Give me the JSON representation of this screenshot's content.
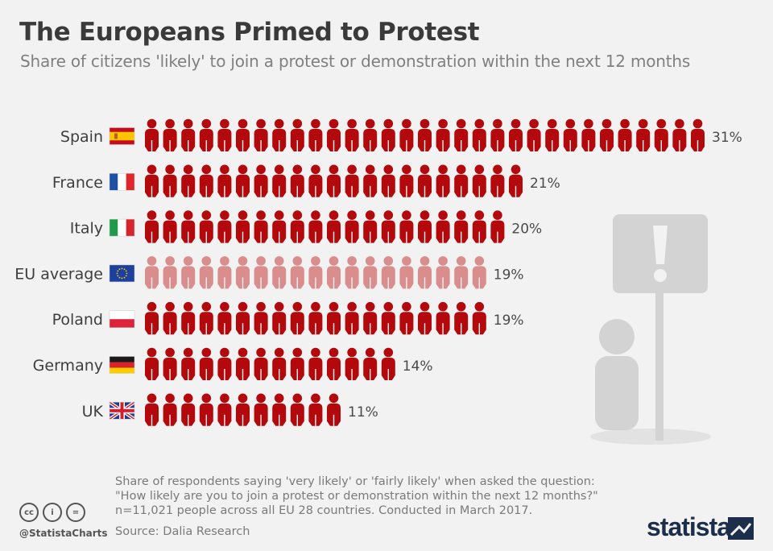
{
  "header": {
    "title": "The Europeans Primed to Protest",
    "subtitle": "Share of citizens 'likely' to join a protest or demonstration within the next 12 months"
  },
  "chart_data": {
    "type": "bar",
    "unit": "%",
    "categories": [
      "Spain",
      "France",
      "Italy",
      "EU average",
      "Poland",
      "Germany",
      "UK"
    ],
    "values": [
      31,
      21,
      20,
      19,
      19,
      14,
      11
    ],
    "value_labels": [
      "31%",
      "21%",
      "20%",
      "19%",
      "19%",
      "14%",
      "11%"
    ],
    "highlight_category": "EU average",
    "colors": {
      "bar": "#b3090c",
      "highlight": "#d98d8d"
    },
    "icons": [
      "spain-flag-icon",
      "france-flag-icon",
      "italy-flag-icon",
      "eu-flag-icon",
      "poland-flag-icon",
      "germany-flag-icon",
      "uk-flag-icon"
    ]
  },
  "footer": {
    "note_lines": [
      "Share of respondents saying 'very likely' or 'fairly likely' when asked the question:",
      "\"How likely are you to join a protest or demonstration within the next 12 months?\"",
      "n=11,021 people across all EU 28 countries. Conducted in March 2017."
    ],
    "source": "Source: Dalia Research",
    "handle": "@StatistaCharts",
    "brand": "statista",
    "license_icons": [
      "cc-icon",
      "attribution-icon",
      "no-derivatives-icon"
    ],
    "license_glyphs": [
      "cc",
      "i",
      "="
    ]
  },
  "illustration": {
    "icon": "protester-with-exclamation-sign-icon"
  }
}
